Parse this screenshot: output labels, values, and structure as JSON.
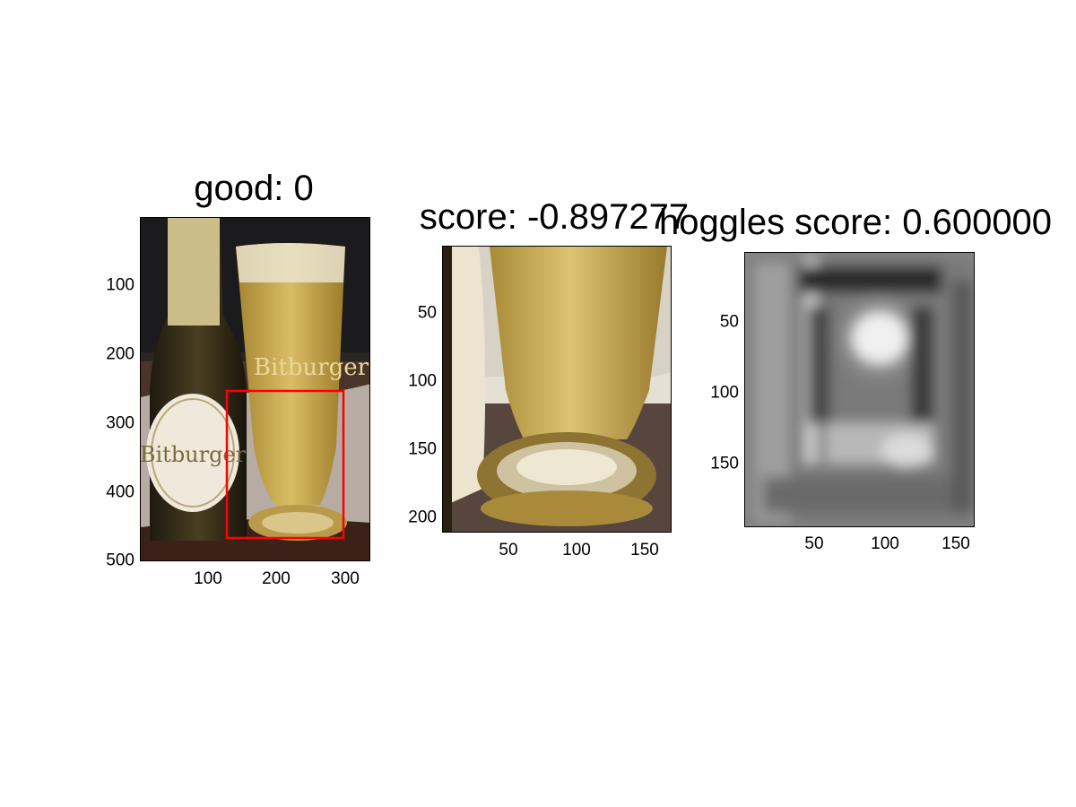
{
  "figure": {
    "panels": [
      {
        "title": "good: 0",
        "yticks": [
          "100",
          "200",
          "300",
          "400",
          "500"
        ],
        "xticks": [
          "100",
          "200",
          "300"
        ],
        "bbox_color": "#ff0000"
      },
      {
        "title": "score: -0.897277",
        "yticks": [
          "50",
          "100",
          "150",
          "200"
        ],
        "xticks": [
          "50",
          "100",
          "150"
        ]
      },
      {
        "title": "hoggles score: 0.600000",
        "yticks": [
          "50",
          "100",
          "150"
        ],
        "xticks": [
          "50",
          "100",
          "150"
        ]
      }
    ],
    "photo_labels": {
      "bottle_label": "Bitburger",
      "glass_logo": "Bitburger"
    },
    "colors": {
      "detection_box": "#ff0000",
      "beer": "#c8a64a",
      "background": "#ffffff"
    }
  }
}
